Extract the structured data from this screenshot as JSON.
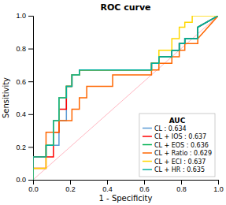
{
  "chart_data": {
    "type": "line",
    "title": "ROC curve",
    "x_label": "1 - Specificity",
    "y_label": "Sensitivity",
    "xlim": [
      0.0,
      1.0
    ],
    "ylim": [
      0.0,
      1.0
    ],
    "xticks": [
      {
        "value": 0,
        "label": "0.0"
      },
      0.2,
      0.4,
      0.6,
      0.8,
      {
        "value": 1,
        "label": "1.0"
      }
    ],
    "yticks": [
      {
        "value": 0,
        "label": "0.0"
      },
      0.2,
      0.4,
      0.6,
      0.8,
      {
        "value": 1,
        "label": "1.0"
      }
    ],
    "legend": "lower right",
    "legend_title": "AUC",
    "reference_line": {
      "color": "#FFB6C1",
      "x": [
        0.0,
        1.0
      ],
      "values": [
        0.0,
        1.0
      ]
    },
    "series": [
      {
        "name": "CL : 0.634",
        "color": "#5B9BD5",
        "x": [
          0.0,
          0.0,
          0.07,
          0.07,
          0.14,
          0.14,
          0.18,
          0.18,
          0.21,
          0.21,
          0.25,
          0.25,
          0.64,
          0.64,
          0.68,
          0.68,
          0.75,
          0.75,
          0.79,
          0.79,
          0.82,
          0.82,
          0.89,
          0.89,
          1.0
        ],
        "values": [
          0.0,
          0.14,
          0.14,
          0.21,
          0.21,
          0.36,
          0.36,
          0.57,
          0.57,
          0.64,
          0.64,
          0.67,
          0.67,
          0.71,
          0.71,
          0.75,
          0.75,
          0.79,
          0.79,
          0.83,
          0.83,
          0.86,
          0.86,
          0.93,
          1.0
        ]
      },
      {
        "name": "CL + IOS : 0.637",
        "color": "#FF0000",
        "x": [
          0.0,
          0.0,
          0.07,
          0.07,
          0.11,
          0.11,
          0.14,
          0.14,
          0.18,
          0.18,
          0.21,
          0.21,
          0.25,
          0.25,
          0.64,
          0.64,
          0.68,
          0.68,
          0.75,
          0.75,
          0.79,
          0.79,
          0.82,
          0.82,
          0.89,
          0.89,
          1.0
        ],
        "values": [
          0.0,
          0.07,
          0.07,
          0.14,
          0.14,
          0.29,
          0.29,
          0.43,
          0.43,
          0.57,
          0.57,
          0.64,
          0.64,
          0.67,
          0.67,
          0.71,
          0.71,
          0.75,
          0.75,
          0.79,
          0.79,
          0.83,
          0.83,
          0.86,
          0.86,
          0.93,
          1.0
        ]
      },
      {
        "name": "CL + EOS : 0.636",
        "color": "#00B050",
        "x": [
          0.0,
          0.0,
          0.07,
          0.07,
          0.11,
          0.11,
          0.14,
          0.14,
          0.18,
          0.18,
          0.21,
          0.21,
          0.25,
          0.25,
          0.64,
          0.64,
          0.68,
          0.68,
          0.75,
          0.75,
          0.79,
          0.79,
          0.82,
          0.82,
          0.89,
          0.89,
          1.0
        ],
        "values": [
          0.0,
          0.14,
          0.14,
          0.21,
          0.21,
          0.36,
          0.36,
          0.5,
          0.5,
          0.57,
          0.57,
          0.64,
          0.64,
          0.67,
          0.67,
          0.71,
          0.71,
          0.75,
          0.75,
          0.79,
          0.79,
          0.83,
          0.83,
          0.86,
          0.86,
          0.93,
          1.0
        ]
      },
      {
        "name": "CL + Ratio : 0.629",
        "color": "#FF6600",
        "x": [
          0.0,
          0.0,
          0.07,
          0.07,
          0.14,
          0.14,
          0.21,
          0.21,
          0.25,
          0.25,
          0.29,
          0.29,
          0.43,
          0.43,
          0.64,
          0.64,
          0.68,
          0.68,
          0.75,
          0.75,
          0.79,
          0.79,
          0.82,
          0.82,
          0.89,
          0.89,
          1.0
        ],
        "values": [
          0.0,
          0.14,
          0.14,
          0.29,
          0.29,
          0.36,
          0.36,
          0.43,
          0.43,
          0.5,
          0.5,
          0.57,
          0.57,
          0.64,
          0.64,
          0.67,
          0.67,
          0.71,
          0.71,
          0.75,
          0.75,
          0.79,
          0.79,
          0.83,
          0.83,
          0.86,
          1.0
        ]
      },
      {
        "name": "CL + ECI : 0.637",
        "color": "#FFD700",
        "x": [
          0.0,
          0.0,
          0.07,
          0.07,
          0.11,
          0.11,
          0.14,
          0.14,
          0.18,
          0.18,
          0.21,
          0.21,
          0.25,
          0.25,
          0.64,
          0.64,
          0.68,
          0.68,
          0.75,
          0.75,
          0.79,
          0.79,
          0.82,
          0.82,
          0.86,
          0.86,
          1.0
        ],
        "values": [
          0.0,
          0.07,
          0.07,
          0.21,
          0.21,
          0.36,
          0.36,
          0.5,
          0.5,
          0.57,
          0.57,
          0.64,
          0.64,
          0.67,
          0.67,
          0.71,
          0.71,
          0.79,
          0.79,
          0.86,
          0.86,
          0.93,
          0.93,
          0.96,
          0.96,
          1.0,
          1.0
        ]
      },
      {
        "name": "CL + HR : 0.635",
        "color": "#00B0A0",
        "x": [
          0.0,
          0.0,
          0.07,
          0.07,
          0.11,
          0.11,
          0.14,
          0.14,
          0.18,
          0.18,
          0.21,
          0.21,
          0.25,
          0.25,
          0.64,
          0.64,
          0.68,
          0.68,
          0.75,
          0.75,
          0.79,
          0.79,
          0.82,
          0.82,
          0.89,
          0.89,
          1.0
        ],
        "values": [
          0.0,
          0.14,
          0.14,
          0.21,
          0.21,
          0.36,
          0.36,
          0.5,
          0.5,
          0.57,
          0.57,
          0.64,
          0.64,
          0.67,
          0.67,
          0.71,
          0.71,
          0.75,
          0.75,
          0.79,
          0.79,
          0.83,
          0.83,
          0.86,
          0.86,
          0.93,
          1.0
        ]
      }
    ]
  }
}
